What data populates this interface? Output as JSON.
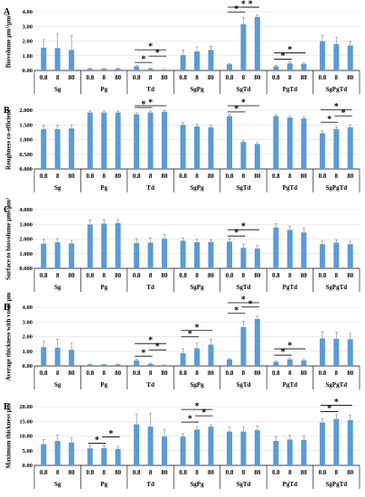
{
  "chart_data": [
    {
      "type": "bar",
      "panel": "A",
      "ylabel": "Biovolume µm³/µm²",
      "yticks": [
        "0.00",
        "1.00",
        "2.00",
        "3.00",
        "4.00"
      ],
      "ylim": [
        0,
        4
      ],
      "groups": [
        "Sg",
        "Pg",
        "Td",
        "SgPg",
        "SgTd",
        "PgTd",
        "SgPgTd"
      ],
      "sublabels": [
        "0.8",
        "8",
        "80"
      ],
      "values": [
        [
          1.55,
          1.52,
          1.4
        ],
        [
          0.12,
          0.12,
          0.12
        ],
        [
          0.28,
          0.12,
          0.05
        ],
        [
          1.05,
          1.3,
          1.4
        ],
        [
          0.42,
          3.15,
          3.65
        ],
        [
          0.28,
          0.48,
          0.45
        ],
        [
          2.0,
          1.8,
          1.7
        ]
      ],
      "errors": [
        [
          0.55,
          0.95,
          0.95
        ],
        [
          0.02,
          0.02,
          0.02
        ],
        [
          0.08,
          0.04,
          0.03
        ],
        [
          0.35,
          0.3,
          0.25
        ],
        [
          0.05,
          0.45,
          0.15
        ],
        [
          0.08,
          0.1,
          0.06
        ],
        [
          0.4,
          0.45,
          0.3
        ]
      ],
      "stars": [
        [
          2,
          0,
          1,
          0
        ],
        [
          2,
          1,
          2,
          1
        ],
        [
          2,
          0,
          2,
          2
        ],
        [
          4,
          0,
          1,
          0
        ],
        [
          4,
          1,
          2,
          1
        ],
        [
          4,
          0,
          2,
          2
        ],
        [
          5,
          0,
          1,
          0
        ],
        [
          5,
          0,
          2,
          1
        ]
      ]
    },
    {
      "type": "bar",
      "panel": "B",
      "ylabel": "Roughness co-efficient",
      "yticks": [
        "0.000",
        "0.500",
        "1.000",
        "1.500",
        "2.000"
      ],
      "ylim": [
        0,
        2
      ],
      "groups": [
        "Sg",
        "Pg",
        "Td",
        "SgPg",
        "SgTd",
        "PgTd",
        "SgPgTd"
      ],
      "sublabels": [
        "0.8",
        "8",
        "80"
      ],
      "values": [
        [
          1.36,
          1.36,
          1.38
        ],
        [
          1.92,
          1.92,
          1.92
        ],
        [
          1.86,
          1.92,
          1.95
        ],
        [
          1.5,
          1.45,
          1.42
        ],
        [
          1.8,
          0.92,
          0.85
        ],
        [
          1.8,
          1.75,
          1.72
        ],
        [
          1.22,
          1.36,
          1.42
        ]
      ],
      "errors": [
        [
          0.12,
          0.12,
          0.12
        ],
        [
          0.05,
          0.05,
          0.05
        ],
        [
          0.05,
          0.05,
          0.05
        ],
        [
          0.08,
          0.08,
          0.08
        ],
        [
          0.05,
          0.05,
          0.05
        ],
        [
          0.05,
          0.05,
          0.05
        ],
        [
          0.08,
          0.08,
          0.08
        ]
      ],
      "stars": [
        [
          2,
          0,
          1,
          0
        ],
        [
          2,
          0,
          2,
          1
        ],
        [
          4,
          0,
          1,
          0
        ],
        [
          4,
          0,
          2,
          1
        ],
        [
          6,
          0,
          1,
          0
        ],
        [
          6,
          0,
          2,
          2
        ],
        [
          6,
          1,
          2,
          1
        ]
      ]
    },
    {
      "type": "bar",
      "panel": "C",
      "ylabel": "Surface to biovolume µm²/µm³",
      "yticks": [
        "0.000",
        "1.000",
        "2.000",
        "3.000",
        "4.000"
      ],
      "ylim": [
        0,
        4
      ],
      "groups": [
        "Sg",
        "Pg",
        "Td",
        "SgPg",
        "SgTd",
        "PgTd",
        "SgPgTd"
      ],
      "sublabels": [
        "0.8",
        "8",
        "80"
      ],
      "values": [
        [
          1.68,
          1.78,
          1.7
        ],
        [
          2.98,
          3.05,
          3.08
        ],
        [
          1.72,
          1.75,
          2.02
        ],
        [
          1.88,
          1.78,
          1.8
        ],
        [
          1.82,
          1.4,
          1.35
        ],
        [
          2.78,
          2.62,
          2.45
        ],
        [
          1.65,
          1.75,
          1.65
        ]
      ],
      "errors": [
        [
          0.3,
          0.25,
          0.2
        ],
        [
          0.3,
          0.25,
          0.25
        ],
        [
          0.3,
          0.3,
          0.3
        ],
        [
          0.2,
          0.2,
          0.15
        ],
        [
          0.2,
          0.25,
          0.2
        ],
        [
          0.25,
          0.25,
          0.3
        ],
        [
          0.25,
          0.2,
          0.2
        ]
      ],
      "stars": [
        [
          4,
          0,
          1,
          0
        ],
        [
          4,
          0,
          2,
          1
        ]
      ]
    },
    {
      "type": "bar",
      "panel": "D",
      "ylabel": "Average thickness with voids µm",
      "yticks": [
        "0.00",
        "1.00",
        "2.00",
        "3.00",
        "4.00"
      ],
      "ylim": [
        0,
        4
      ],
      "groups": [
        "Sg",
        "Pg",
        "Td",
        "SgPg",
        "SgTd",
        "PgTd",
        "SgPgTd"
      ],
      "sublabels": [
        "0.8",
        "8",
        "80"
      ],
      "values": [
        [
          1.28,
          1.25,
          1.1
        ],
        [
          0.1,
          0.1,
          0.1
        ],
        [
          0.38,
          0.14,
          0.05
        ],
        [
          0.88,
          1.2,
          1.45
        ],
        [
          0.45,
          2.65,
          3.2
        ],
        [
          0.28,
          0.45,
          0.38
        ],
        [
          1.88,
          1.85,
          1.82
        ]
      ],
      "errors": [
        [
          0.4,
          0.55,
          0.45
        ],
        [
          0.02,
          0.02,
          0.02
        ],
        [
          0.1,
          0.05,
          0.03
        ],
        [
          0.3,
          0.35,
          0.35
        ],
        [
          0.05,
          0.4,
          0.2
        ],
        [
          0.08,
          0.1,
          0.06
        ],
        [
          0.45,
          0.45,
          0.4
        ]
      ],
      "stars": [
        [
          2,
          0,
          1,
          0
        ],
        [
          2,
          1,
          2,
          1
        ],
        [
          2,
          0,
          2,
          2
        ],
        [
          3,
          0,
          1,
          0
        ],
        [
          3,
          0,
          2,
          1
        ],
        [
          4,
          0,
          1,
          0
        ],
        [
          4,
          1,
          2,
          1
        ],
        [
          4,
          0,
          2,
          2
        ],
        [
          5,
          0,
          1,
          0
        ],
        [
          5,
          0,
          2,
          1
        ]
      ]
    },
    {
      "type": "bar",
      "panel": "E",
      "ylabel": "Maximum thickness µm",
      "yticks": [
        "0.00",
        "5.00",
        "10.00",
        "15.00",
        "20.00"
      ],
      "ylim": [
        0,
        20
      ],
      "groups": [
        "Sg",
        "Pg",
        "Td",
        "SgPg",
        "SgTd",
        "PgTd",
        "SgPgTd"
      ],
      "sublabels": [
        "0.8",
        "8",
        "80"
      ],
      "values": [
        [
          7.2,
          8.3,
          7.8
        ],
        [
          5.8,
          5.9,
          5.6
        ],
        [
          14.0,
          13.2,
          9.8
        ],
        [
          9.8,
          12.2,
          13.2
        ],
        [
          11.5,
          11.5,
          12.0
        ],
        [
          8.3,
          8.8,
          8.6
        ],
        [
          14.6,
          15.8,
          15.4
        ]
      ],
      "errors": [
        [
          1.6,
          2.0,
          1.6
        ],
        [
          0.8,
          0.7,
          0.9
        ],
        [
          3.5,
          4.5,
          2.5
        ],
        [
          1.0,
          1.0,
          0.6
        ],
        [
          1.5,
          1.5,
          1.4
        ],
        [
          1.5,
          1.4,
          1.4
        ],
        [
          1.3,
          1.6,
          1.6
        ]
      ],
      "stars": [
        [
          1,
          0,
          1,
          0
        ],
        [
          1,
          1,
          2,
          1
        ],
        [
          3,
          0,
          1,
          0
        ],
        [
          3,
          1,
          2,
          1
        ],
        [
          3,
          0,
          2,
          2
        ],
        [
          6,
          0,
          1,
          0
        ],
        [
          6,
          0,
          2,
          1
        ]
      ]
    }
  ],
  "style": {
    "bar_color": "#5b9bd5",
    "axis_color": "#000000",
    "grid_color": "#d9d9d9"
  }
}
